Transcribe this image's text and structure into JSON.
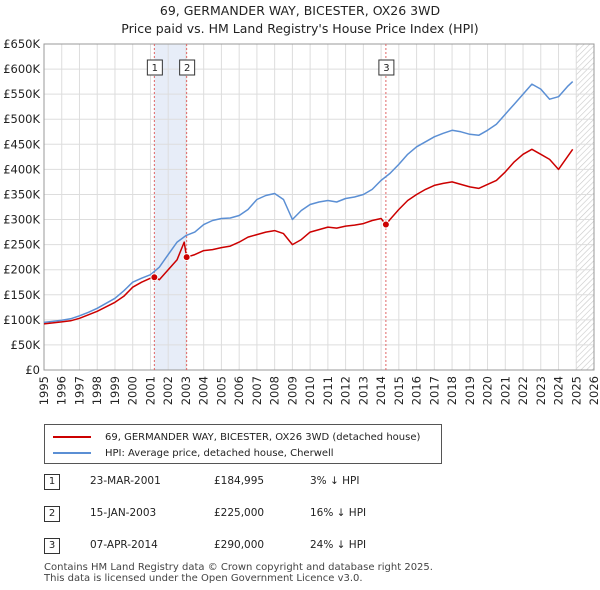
{
  "title_line1": "69, GERMANDER WAY, BICESTER, OX26 3WD",
  "title_line2": "Price paid vs. HM Land Registry's House Price Index (HPI)",
  "chart_data": {
    "type": "line",
    "xlim": [
      1995,
      2026
    ],
    "ylim": [
      0,
      650000
    ],
    "x_ticks": [
      "1995",
      "1996",
      "1997",
      "1998",
      "1999",
      "2000",
      "2001",
      "2002",
      "2003",
      "2004",
      "2005",
      "2006",
      "2007",
      "2008",
      "2009",
      "2010",
      "2011",
      "2012",
      "2013",
      "2014",
      "2015",
      "2016",
      "2017",
      "2018",
      "2019",
      "2020",
      "2021",
      "2022",
      "2023",
      "2024",
      "2025",
      "2026"
    ],
    "y_ticks": [
      {
        "value": 0,
        "label": "£0"
      },
      {
        "value": 50000,
        "label": "£50K"
      },
      {
        "value": 100000,
        "label": "£100K"
      },
      {
        "value": 150000,
        "label": "£150K"
      },
      {
        "value": 200000,
        "label": "£200K"
      },
      {
        "value": 250000,
        "label": "£250K"
      },
      {
        "value": 300000,
        "label": "£300K"
      },
      {
        "value": 350000,
        "label": "£350K"
      },
      {
        "value": 400000,
        "label": "£400K"
      },
      {
        "value": 450000,
        "label": "£450K"
      },
      {
        "value": 500000,
        "label": "£500K"
      },
      {
        "value": 550000,
        "label": "£550K"
      },
      {
        "value": 600000,
        "label": "£600K"
      },
      {
        "value": 650000,
        "label": "£650K"
      }
    ],
    "series": [
      {
        "name": "69, GERMANDER WAY, BICESTER, OX26 3WD (detached house)",
        "color": "#cc0000",
        "x": [
          1995.0,
          1995.5,
          1996.0,
          1996.5,
          1997.0,
          1997.5,
          1998.0,
          1998.5,
          1999.0,
          1999.5,
          2000.0,
          2000.5,
          2001.0,
          2001.22,
          2001.5,
          2002.0,
          2002.5,
          2002.9,
          2003.04,
          2003.5,
          2004.0,
          2004.5,
          2005.0,
          2005.5,
          2006.0,
          2006.5,
          2007.0,
          2007.5,
          2008.0,
          2008.5,
          2009.0,
          2009.5,
          2010.0,
          2010.5,
          2011.0,
          2011.5,
          2012.0,
          2012.5,
          2013.0,
          2013.5,
          2014.0,
          2014.27,
          2014.5,
          2015.0,
          2015.5,
          2016.0,
          2016.5,
          2017.0,
          2017.5,
          2018.0,
          2018.5,
          2019.0,
          2019.5,
          2020.0,
          2020.5,
          2021.0,
          2021.5,
          2022.0,
          2022.5,
          2023.0,
          2023.5,
          2024.0,
          2024.5,
          2024.8
        ],
        "y": [
          92000,
          94000,
          96000,
          98000,
          103000,
          110000,
          117000,
          126000,
          135000,
          147000,
          165000,
          175000,
          183000,
          184995,
          180000,
          200000,
          220000,
          255000,
          225000,
          230000,
          238000,
          240000,
          244000,
          247000,
          255000,
          265000,
          270000,
          275000,
          278000,
          272000,
          250000,
          260000,
          275000,
          280000,
          285000,
          283000,
          287000,
          289000,
          292000,
          298000,
          302000,
          290000,
          300000,
          320000,
          338000,
          350000,
          360000,
          368000,
          372000,
          375000,
          370000,
          365000,
          362000,
          370000,
          378000,
          395000,
          415000,
          430000,
          440000,
          430000,
          420000,
          400000,
          425000,
          440000
        ]
      },
      {
        "name": "HPI: Average price, detached house, Cherwell",
        "color": "#5b8fd4",
        "x": [
          1995.0,
          1995.5,
          1996.0,
          1996.5,
          1997.0,
          1997.5,
          1998.0,
          1998.5,
          1999.0,
          1999.5,
          2000.0,
          2000.5,
          2001.0,
          2001.5,
          2002.0,
          2002.5,
          2003.0,
          2003.5,
          2004.0,
          2004.5,
          2005.0,
          2005.5,
          2006.0,
          2006.5,
          2007.0,
          2007.5,
          2008.0,
          2008.5,
          2009.0,
          2009.5,
          2010.0,
          2010.5,
          2011.0,
          2011.5,
          2012.0,
          2012.5,
          2013.0,
          2013.5,
          2014.0,
          2014.5,
          2015.0,
          2015.5,
          2016.0,
          2016.5,
          2017.0,
          2017.5,
          2018.0,
          2018.5,
          2019.0,
          2019.5,
          2020.0,
          2020.5,
          2021.0,
          2021.5,
          2022.0,
          2022.5,
          2023.0,
          2023.5,
          2024.0,
          2024.5,
          2024.8
        ],
        "y": [
          95000,
          97000,
          99000,
          102000,
          108000,
          115000,
          123000,
          133000,
          143000,
          158000,
          175000,
          183000,
          190000,
          205000,
          230000,
          255000,
          268000,
          275000,
          290000,
          298000,
          302000,
          303000,
          308000,
          320000,
          340000,
          348000,
          352000,
          340000,
          300000,
          318000,
          330000,
          335000,
          338000,
          335000,
          342000,
          345000,
          350000,
          360000,
          378000,
          392000,
          410000,
          430000,
          445000,
          455000,
          465000,
          472000,
          478000,
          475000,
          470000,
          468000,
          478000,
          490000,
          510000,
          530000,
          550000,
          570000,
          560000,
          540000,
          545000,
          565000,
          575000
        ]
      }
    ],
    "sales": [
      {
        "label": "1",
        "x": 2001.22,
        "y": 184995
      },
      {
        "label": "2",
        "x": 2003.04,
        "y": 225000
      },
      {
        "label": "3",
        "x": 2014.27,
        "y": 290000
      }
    ],
    "shaded_period": [
      2001.22,
      2003.04
    ],
    "forecast_start": 2025.0
  },
  "legend": {
    "property_label": "69, GERMANDER WAY, BICESTER, OX26 3WD (detached house)",
    "hpi_label": "HPI: Average price, detached house, Cherwell"
  },
  "transactions": [
    {
      "num": "1",
      "date": "23-MAR-2001",
      "price": "£184,995",
      "hpi": "3% ↓ HPI"
    },
    {
      "num": "2",
      "date": "15-JAN-2003",
      "price": "£225,000",
      "hpi": "16% ↓ HPI"
    },
    {
      "num": "3",
      "date": "07-APR-2014",
      "price": "£290,000",
      "hpi": "24% ↓ HPI"
    }
  ],
  "footer": {
    "line1": "Contains HM Land Registry data © Crown copyright and database right 2025.",
    "line2": "This data is licensed under the Open Government Licence v3.0."
  }
}
